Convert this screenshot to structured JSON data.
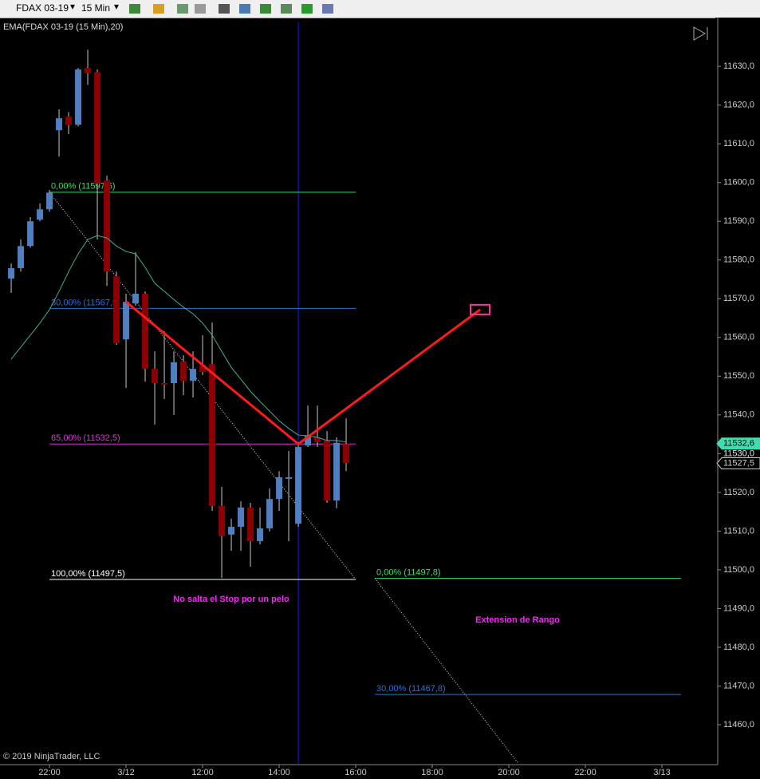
{
  "toolbar": {
    "instrument": "FDAX 03-19",
    "interval": "15 Min"
  },
  "chart_data": {
    "type": "candlestick",
    "title": "EMA(FDAX 03-19 (15 Min),20)",
    "copyright": "© 2019 NinjaTrader, LLC",
    "x": [
      -4,
      -3,
      -2,
      -1,
      0,
      1,
      2,
      3,
      4,
      5,
      6,
      7,
      8,
      9,
      10,
      11,
      12,
      13,
      14,
      15,
      16,
      17,
      18,
      19,
      20,
      21,
      22,
      23,
      24,
      25,
      26,
      27,
      28,
      29,
      30,
      31
    ],
    "open": [
      11575.2,
      11577.9,
      11583.6,
      11590.4,
      11593.1,
      11613.5,
      11617.0,
      11614.9,
      11629.6,
      11628.5,
      11600.5,
      11575.8,
      11559.5,
      11568.8,
      11571.3,
      11551.9,
      11548.2,
      11548.2,
      11553.8,
      11548.8,
      11552.9,
      11553.1,
      11516.5,
      11509.1,
      11511.1,
      11516.1,
      11507.4,
      11510.7,
      11518.3,
      11523.5,
      11511.9,
      11532.1,
      11534.2,
      11533.4,
      11517.9,
      11532.5
    ],
    "high": [
      11579.1,
      11585.3,
      11591.1,
      11594.6,
      11598.1,
      11618.9,
      11618.2,
      11629.6,
      11634.3,
      11629.2,
      11601.8,
      11577.0,
      11571.3,
      11582.0,
      11571.9,
      11556.4,
      11561.6,
      11556.4,
      11555.4,
      11556.4,
      11560.6,
      11563.9,
      11521.4,
      11513.2,
      11517.7,
      11517.3,
      11516.1,
      11521.0,
      11525.5,
      11530.7,
      11532.5,
      11542.4,
      11542.4,
      11535.8,
      11534.2,
      11539.1
    ],
    "low": [
      11571.5,
      11577.0,
      11583.2,
      11590.0,
      11592.5,
      11606.7,
      11612.5,
      11614.5,
      11625.2,
      11585.3,
      11573.3,
      11558.1,
      11547.0,
      11568.2,
      11548.6,
      11537.5,
      11544.1,
      11540.0,
      11545.1,
      11544.5,
      11550.3,
      11515.2,
      11497.9,
      11504.9,
      11504.9,
      11500.8,
      11506.6,
      11509.9,
      11515.2,
      11507.4,
      11511.1,
      11531.7,
      11531.7,
      11517.3,
      11515.9,
      11525.5
    ],
    "close": [
      11577.9,
      11583.6,
      11590.0,
      11593.1,
      11597.4,
      11616.6,
      11614.9,
      11629.2,
      11628.3,
      11599.7,
      11577.0,
      11558.5,
      11569.2,
      11571.3,
      11551.9,
      11548.2,
      11547.8,
      11553.6,
      11548.8,
      11551.9,
      11551.1,
      11516.5,
      11508.7,
      11511.1,
      11516.1,
      11507.4,
      11510.7,
      11518.3,
      11523.9,
      11523.9,
      11531.7,
      11534.6,
      11533.0,
      11517.9,
      11532.8,
      11527.6
    ],
    "up_color": "#4f7fbf",
    "down_color": "#8b0000",
    "wick_color": "#c8c8c8",
    "ema": {
      "color": "#3fae9c",
      "values": [
        11554.4,
        11557.5,
        11560.6,
        11563.7,
        11567.2,
        11571.9,
        11577.0,
        11581.6,
        11585.3,
        11586.3,
        11585.7,
        11583.6,
        11582.2,
        11581.6,
        11578.1,
        11574.0,
        11571.9,
        11569.8,
        11567.8,
        11566.1,
        11563.7,
        11560.6,
        11556.4,
        11552.3,
        11549.2,
        11546.1,
        11543.5,
        11541.0,
        11538.5,
        11536.5,
        11534.8,
        11534.6,
        11534.2,
        11533.4,
        11533.4,
        11533.0
      ]
    },
    "xlim": [
      -5.17,
      69.58
    ],
    "xticks": [
      {
        "value": 0,
        "label": "22:00"
      },
      {
        "value": 8,
        "label": "3/12"
      },
      {
        "value": 16,
        "label": "12:00"
      },
      {
        "value": 24,
        "label": "14:00"
      },
      {
        "value": 32,
        "label": "16:00"
      },
      {
        "value": 40,
        "label": "18:00"
      },
      {
        "value": 48,
        "label": "20:00"
      },
      {
        "value": 56,
        "label": "22:00"
      },
      {
        "value": 64,
        "label": "3/13"
      }
    ],
    "ylim": [
      11449.7,
      11642.6
    ],
    "yticks": [
      {
        "value": 11460,
        "label": "11460,0"
      },
      {
        "value": 11470,
        "label": "11470,0"
      },
      {
        "value": 11480,
        "label": "11480,0"
      },
      {
        "value": 11490,
        "label": "11490,0"
      },
      {
        "value": 11500,
        "label": "11500,0"
      },
      {
        "value": 11510,
        "label": "11510,0"
      },
      {
        "value": 11520,
        "label": "11520,0"
      },
      {
        "value": 11530,
        "label": "11530,0"
      },
      {
        "value": 11540,
        "label": "11540,0"
      },
      {
        "value": 11550,
        "label": "11550,0"
      },
      {
        "value": 11560,
        "label": "11560,0"
      },
      {
        "value": 11570,
        "label": "11570,0"
      },
      {
        "value": 11580,
        "label": "11580,0"
      },
      {
        "value": 11590,
        "label": "11590,0"
      },
      {
        "value": 11600,
        "label": "11600,0"
      },
      {
        "value": 11610,
        "label": "11610,0"
      },
      {
        "value": 11620,
        "label": "11620,0"
      },
      {
        "value": 11630,
        "label": "11630,0"
      }
    ],
    "fib_levels": [
      {
        "label": "0,00% (11597,5)",
        "value": 11597.5,
        "x": [
          0,
          32
        ],
        "color": "#3ddc6a"
      },
      {
        "label": "30,00% (11567,5)",
        "value": 11567.5,
        "x": [
          0,
          32
        ],
        "color": "#2f6fd6"
      },
      {
        "label": "65,00% (11532,5)",
        "value": 11532.5,
        "x": [
          0,
          32
        ],
        "color": "#d633d6"
      },
      {
        "label": "100,00% (11497,5)",
        "value": 11497.5,
        "x": [
          0,
          32
        ],
        "color": "#ffffff"
      },
      {
        "label": "0,00% (11497,8)",
        "value": 11497.8,
        "x": [
          34,
          66
        ],
        "color": "#3ddc6a"
      },
      {
        "label": "30,00% (11467,8)",
        "value": 11467.8,
        "x": [
          34,
          66
        ],
        "color": "#2f6fd6"
      }
    ],
    "trend_lines": [
      {
        "x": [
          0,
          32
        ],
        "y": [
          11597.5,
          11497.5
        ]
      },
      {
        "x": [
          34,
          49
        ],
        "y": [
          11497.8,
          11450
        ]
      }
    ],
    "path": {
      "x": [
        8,
        26,
        45
      ],
      "y": [
        11569.2,
        11532.5,
        11567.2
      ],
      "color": "#ff1a1a"
    },
    "vline_x": 26,
    "price_markers": [
      {
        "value": 11532.6,
        "label": "11532,6"
      },
      {
        "value": 11530,
        "label": "11530,0"
      },
      {
        "value": 11527.5,
        "label": "11527,5"
      }
    ],
    "annotations": [
      {
        "text": "No salta el Stop por un pelo",
        "color": "#ff22ff"
      },
      {
        "text": "Extension de Rango",
        "color": "#ff22ff"
      }
    ]
  }
}
